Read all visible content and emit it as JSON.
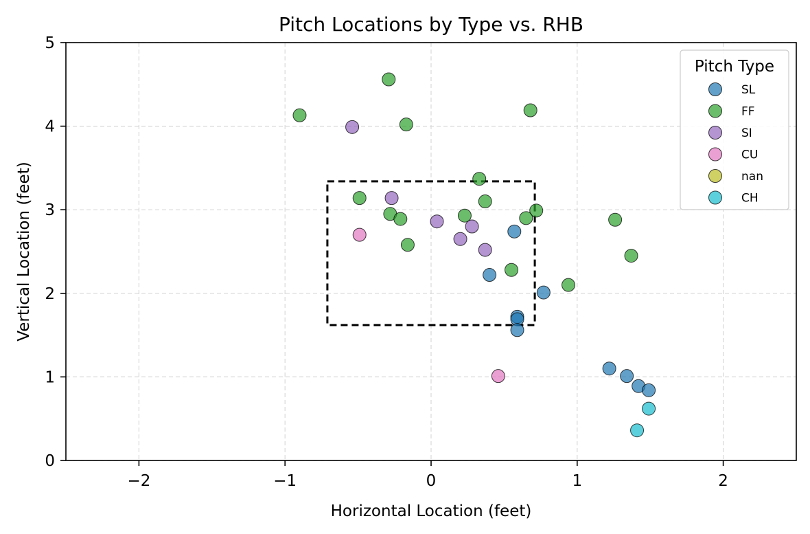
{
  "chart_data": {
    "type": "scatter",
    "title": "Pitch Locations by Type vs. RHB",
    "xlabel": "Horizontal Location (feet)",
    "ylabel": "Vertical Location (feet)",
    "xlim": [
      -2.5,
      2.5
    ],
    "ylim": [
      0,
      5
    ],
    "xticks": [
      -2,
      -1,
      0,
      1,
      2
    ],
    "xtick_labels": [
      "−2",
      "−1",
      "0",
      "1",
      "2"
    ],
    "yticks": [
      0,
      1,
      2,
      3,
      4,
      5
    ],
    "ytick_labels": [
      "0",
      "1",
      "2",
      "3",
      "4",
      "5"
    ],
    "grid": true,
    "legend_title": "Pitch Type",
    "legend_position": "top-right",
    "strike_zone": {
      "x": [
        -0.71,
        0.71
      ],
      "y": [
        1.62,
        3.34
      ]
    },
    "series": [
      {
        "name": "SL",
        "color": "#1f77b4",
        "points": [
          [
            0.57,
            2.74
          ],
          [
            0.4,
            2.22
          ],
          [
            0.77,
            2.01
          ],
          [
            0.59,
            1.72
          ],
          [
            0.59,
            1.69
          ],
          [
            0.59,
            1.56
          ],
          [
            1.22,
            1.1
          ],
          [
            1.34,
            1.01
          ],
          [
            1.42,
            0.89
          ],
          [
            1.49,
            0.84
          ]
        ]
      },
      {
        "name": "FF",
        "color": "#2ca02c",
        "points": [
          [
            -0.29,
            4.56
          ],
          [
            -0.9,
            4.13
          ],
          [
            -0.17,
            4.02
          ],
          [
            0.68,
            4.19
          ],
          [
            0.33,
            3.37
          ],
          [
            -0.49,
            3.14
          ],
          [
            0.37,
            3.1
          ],
          [
            -0.28,
            2.95
          ],
          [
            -0.21,
            2.89
          ],
          [
            0.23,
            2.93
          ],
          [
            0.72,
            2.99
          ],
          [
            0.65,
            2.9
          ],
          [
            1.26,
            2.88
          ],
          [
            -0.16,
            2.58
          ],
          [
            0.55,
            2.28
          ],
          [
            1.37,
            2.45
          ],
          [
            0.94,
            2.1
          ]
        ]
      },
      {
        "name": "SI",
        "color": "#9467bd",
        "points": [
          [
            -0.54,
            3.99
          ],
          [
            -0.27,
            3.14
          ],
          [
            0.04,
            2.86
          ],
          [
            0.28,
            2.8
          ],
          [
            0.2,
            2.65
          ],
          [
            0.37,
            2.52
          ]
        ]
      },
      {
        "name": "CU",
        "color": "#e377c2",
        "points": [
          [
            -0.49,
            2.7
          ],
          [
            0.46,
            1.01
          ]
        ]
      },
      {
        "name": "nan",
        "color": "#bcbd22",
        "points": []
      },
      {
        "name": "CH",
        "color": "#17becf",
        "points": [
          [
            1.49,
            0.62
          ],
          [
            1.41,
            0.36
          ]
        ]
      }
    ]
  }
}
